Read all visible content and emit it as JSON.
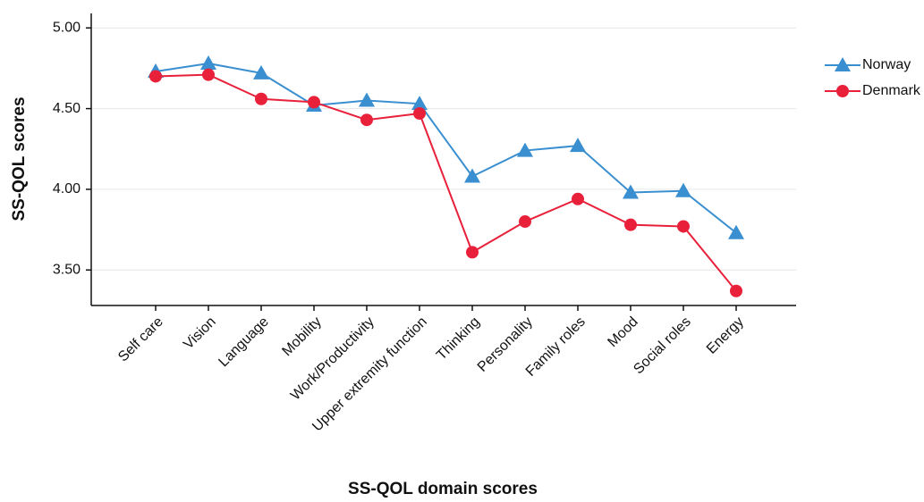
{
  "chart_data": {
    "type": "line",
    "x_label": "SS-QOL domain scores",
    "y_label": "SS-QOL scores",
    "categories": [
      "Self care",
      "Vision",
      "Language",
      "Mobility",
      "Work/Productivity",
      "Upper extremity function",
      "Thinking",
      "Personality",
      "Family roles",
      "Mood",
      "Social roles",
      "Energy"
    ],
    "series": [
      {
        "name": "Norway",
        "color": "#3a8fd0",
        "marker": "triangle",
        "values": [
          4.73,
          4.78,
          4.72,
          4.52,
          4.55,
          4.53,
          4.08,
          4.24,
          4.27,
          3.98,
          3.99,
          3.73
        ]
      },
      {
        "name": "Denmark",
        "color": "#e8203a",
        "marker": "circle",
        "values": [
          4.7,
          4.71,
          4.56,
          4.54,
          4.43,
          4.47,
          3.61,
          3.8,
          3.94,
          3.78,
          3.77,
          3.37
        ]
      }
    ],
    "ylim": [
      3.28,
      5.09
    ],
    "yticks": [
      {
        "value": 5,
        "label": "5.00"
      },
      {
        "value": 4.5,
        "label": "4.50"
      },
      {
        "value": 4,
        "label": "4.00"
      },
      {
        "value": 3.5,
        "label": "3.50"
      }
    ],
    "grid": true,
    "legend": "right"
  }
}
